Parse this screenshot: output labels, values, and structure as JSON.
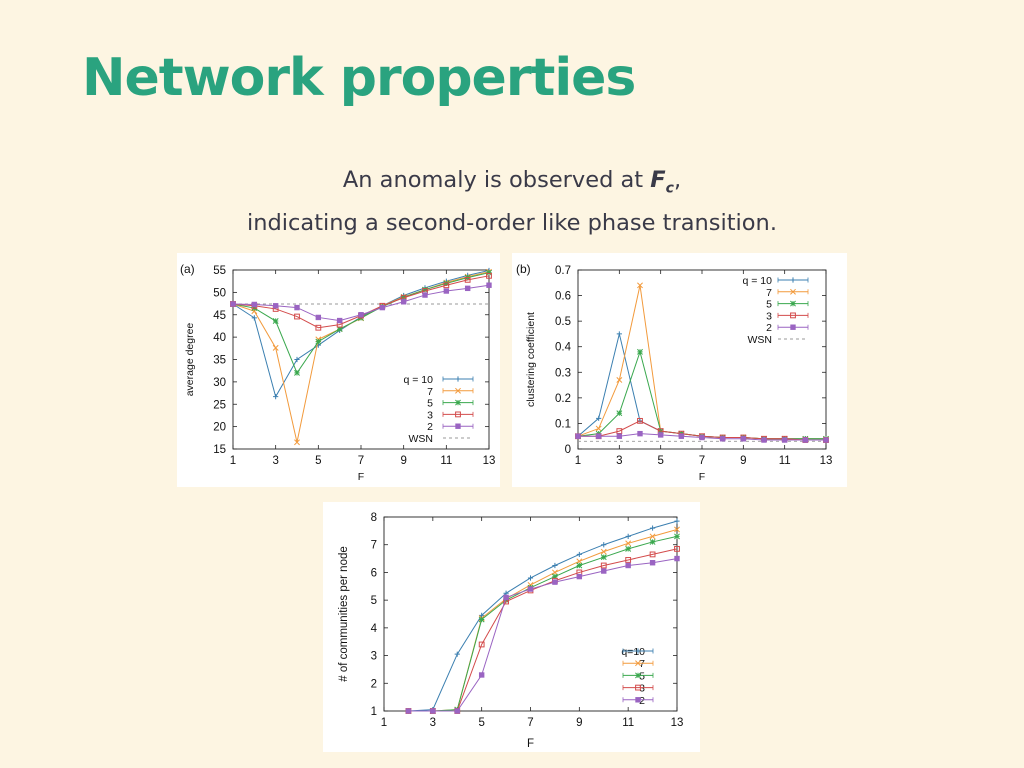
{
  "slide": {
    "title": "Network properties",
    "subtitle_line1_prefix": "An anomaly is observed at ",
    "subtitle_symbol": "F",
    "subtitle_symbol_sub": "c",
    "subtitle_line1_suffix": ",",
    "subtitle_line2": "indicating a second-order like phase transition."
  },
  "chart_data": [
    {
      "type": "line",
      "panel_label": "(a)",
      "xlabel": "F",
      "ylabel": "average degree",
      "xlim": [
        1,
        13
      ],
      "ylim": [
        15,
        55
      ],
      "xticks": [
        1,
        3,
        5,
        7,
        9,
        11,
        13
      ],
      "yticks": [
        15,
        20,
        25,
        30,
        35,
        40,
        45,
        50,
        55
      ],
      "x": [
        1,
        2,
        3,
        4,
        5,
        6,
        7,
        8,
        9,
        10,
        11,
        12,
        13
      ],
      "legend_position": "bottom-right",
      "reference_line": {
        "name": "WSN",
        "y": 47.4
      },
      "series": [
        {
          "name": "q = 10",
          "color": "#3b7fb0",
          "marker": "plus",
          "values": [
            47.4,
            44.3,
            26.7,
            35.0,
            38.2,
            41.5,
            44.5,
            47.0,
            49.3,
            51.0,
            52.5,
            53.8,
            54.9
          ]
        },
        {
          "name": "7",
          "color": "#f29a3c",
          "marker": "cross",
          "values": [
            47.4,
            45.8,
            37.6,
            16.5,
            39.5,
            41.8,
            44.2,
            47.0,
            49.0,
            50.6,
            52.2,
            53.5,
            54.6
          ]
        },
        {
          "name": "5",
          "color": "#3aa84e",
          "marker": "star",
          "values": [
            47.4,
            46.5,
            43.6,
            32.0,
            39.0,
            41.8,
            44.3,
            46.8,
            48.9,
            50.6,
            52.0,
            53.3,
            54.4
          ]
        },
        {
          "name": "3",
          "color": "#d34b4b",
          "marker": "square-open",
          "values": [
            47.4,
            47.0,
            46.3,
            44.6,
            42.1,
            42.8,
            44.8,
            47.0,
            48.8,
            50.3,
            51.6,
            52.8,
            53.7
          ]
        },
        {
          "name": "2",
          "color": "#9a64c2",
          "marker": "square",
          "values": [
            47.4,
            47.3,
            47.0,
            46.6,
            44.4,
            43.7,
            45.0,
            46.6,
            47.9,
            49.4,
            50.3,
            50.9,
            51.6
          ]
        }
      ]
    },
    {
      "type": "line",
      "panel_label": "(b)",
      "xlabel": "F",
      "ylabel": "clustering coefficient",
      "xlim": [
        1,
        13
      ],
      "ylim": [
        0,
        0.7
      ],
      "xticks": [
        1,
        3,
        5,
        7,
        9,
        11,
        13
      ],
      "yticks": [
        0,
        0.1,
        0.2,
        0.3,
        0.4,
        0.5,
        0.6,
        0.7
      ],
      "x": [
        1,
        2,
        3,
        4,
        5,
        6,
        7,
        8,
        9,
        10,
        11,
        12,
        13
      ],
      "legend_position": "top-right",
      "reference_line": {
        "name": "WSN",
        "y": 0.03
      },
      "series": [
        {
          "name": "q = 10",
          "color": "#3b7fb0",
          "marker": "plus",
          "values": [
            0.05,
            0.12,
            0.45,
            0.11,
            0.07,
            0.06,
            0.05,
            0.045,
            0.045,
            0.04,
            0.04,
            0.04,
            0.04
          ]
        },
        {
          "name": "7",
          "color": "#f29a3c",
          "marker": "cross",
          "values": [
            0.05,
            0.08,
            0.27,
            0.64,
            0.07,
            0.06,
            0.05,
            0.045,
            0.045,
            0.04,
            0.04,
            0.04,
            0.04
          ]
        },
        {
          "name": "5",
          "color": "#3aa84e",
          "marker": "star",
          "values": [
            0.05,
            0.06,
            0.14,
            0.38,
            0.07,
            0.06,
            0.05,
            0.045,
            0.045,
            0.04,
            0.04,
            0.04,
            0.04
          ]
        },
        {
          "name": "3",
          "color": "#d34b4b",
          "marker": "square-open",
          "values": [
            0.05,
            0.05,
            0.07,
            0.11,
            0.07,
            0.06,
            0.05,
            0.045,
            0.045,
            0.04,
            0.04,
            0.035,
            0.035
          ]
        },
        {
          "name": "2",
          "color": "#9a64c2",
          "marker": "square",
          "values": [
            0.05,
            0.05,
            0.05,
            0.06,
            0.055,
            0.05,
            0.045,
            0.04,
            0.04,
            0.035,
            0.035,
            0.035,
            0.035
          ]
        }
      ]
    },
    {
      "type": "line",
      "xlabel": "F",
      "ylabel": "# of communities per node",
      "xlim": [
        1,
        13
      ],
      "ylim": [
        1,
        8
      ],
      "xticks": [
        1,
        3,
        5,
        7,
        9,
        11,
        13
      ],
      "yticks": [
        1,
        2,
        3,
        4,
        5,
        6,
        7,
        8
      ],
      "x": [
        2,
        3,
        4,
        5,
        6,
        7,
        8,
        9,
        10,
        11,
        12,
        13
      ],
      "legend_position": "bottom-right",
      "series": [
        {
          "name": "q=10",
          "color": "#3b7fb0",
          "marker": "plus",
          "values": [
            1.0,
            1.05,
            3.05,
            4.45,
            5.25,
            5.8,
            6.25,
            6.65,
            7.0,
            7.3,
            7.6,
            7.85
          ]
        },
        {
          "name": "7",
          "color": "#f29a3c",
          "marker": "cross",
          "values": [
            1.0,
            1.0,
            1.05,
            4.35,
            5.05,
            5.55,
            6.0,
            6.4,
            6.75,
            7.05,
            7.3,
            7.55
          ]
        },
        {
          "name": "5",
          "color": "#3aa84e",
          "marker": "star",
          "values": [
            1.0,
            1.0,
            1.05,
            4.3,
            5.0,
            5.45,
            5.85,
            6.25,
            6.55,
            6.85,
            7.1,
            7.3
          ]
        },
        {
          "name": "3",
          "color": "#d34b4b",
          "marker": "square-open",
          "values": [
            1.0,
            1.0,
            1.0,
            3.4,
            4.95,
            5.35,
            5.7,
            6.0,
            6.25,
            6.45,
            6.65,
            6.85
          ]
        },
        {
          "name": "2",
          "color": "#9a64c2",
          "marker": "square",
          "values": [
            1.0,
            1.0,
            1.0,
            2.3,
            5.1,
            5.4,
            5.65,
            5.85,
            6.05,
            6.25,
            6.35,
            6.5
          ]
        }
      ]
    }
  ]
}
